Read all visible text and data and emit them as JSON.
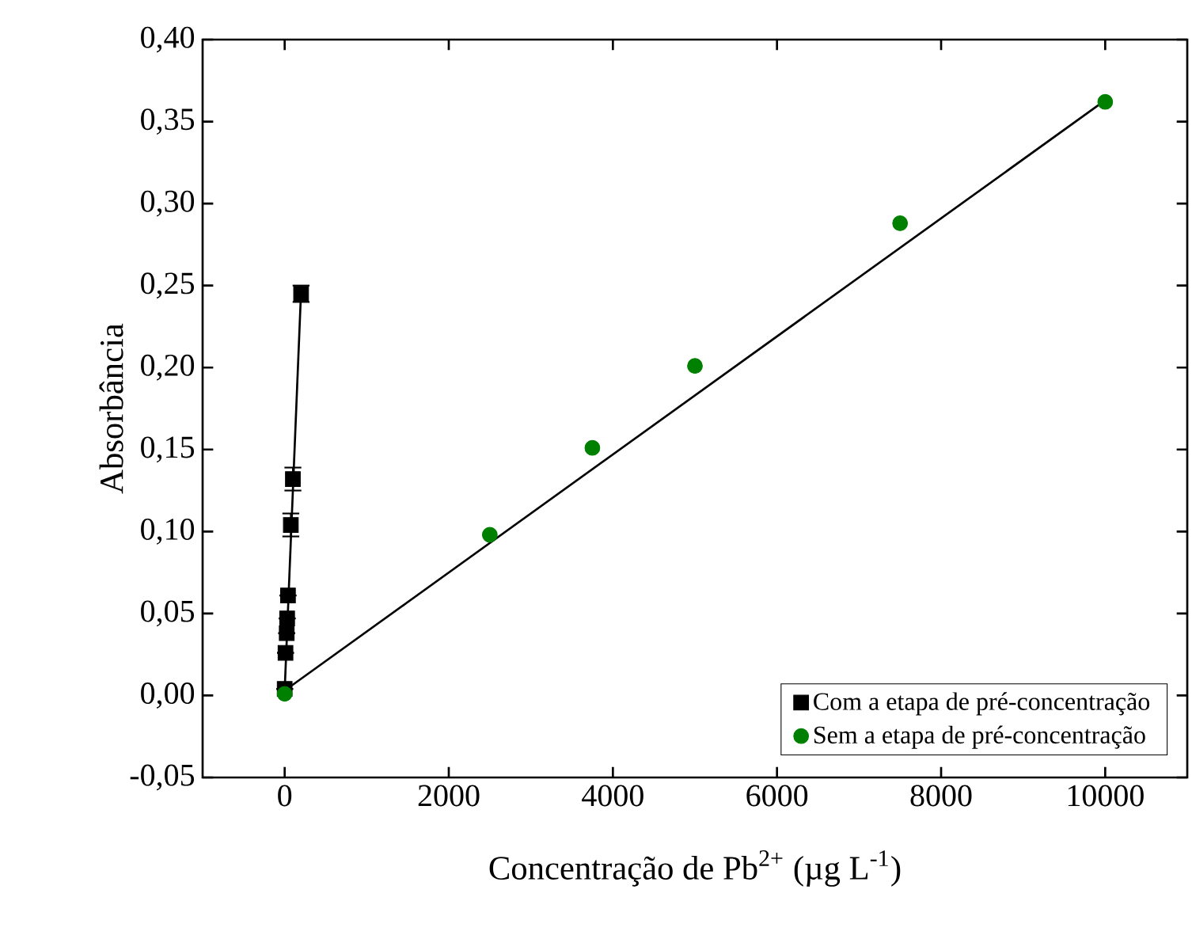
{
  "chart_data": {
    "type": "scatter",
    "xlabel": "Concentração de Pb$^{2+}$ (µg L$^{-1}$)",
    "ylabel": "Absorbância",
    "xlim": [
      -1000,
      11000
    ],
    "xticks": [
      0,
      2000,
      4000,
      6000,
      8000,
      10000
    ],
    "ylim": [
      -0.05,
      0.4
    ],
    "yticks": [
      {
        "value": -0.05,
        "label": "-0,05"
      },
      {
        "value": 0,
        "label": "0,00"
      },
      {
        "value": 0.05,
        "label": "0,05"
      },
      {
        "value": 0.1,
        "label": "0,10"
      },
      {
        "value": 0.15,
        "label": "0,15"
      },
      {
        "value": 0.2,
        "label": "0,20"
      },
      {
        "value": 0.25,
        "label": "0,25"
      },
      {
        "value": 0.3,
        "label": "0,30"
      },
      {
        "value": 0.35,
        "label": "0,35"
      },
      {
        "value": 0.4,
        "label": "0,40"
      }
    ],
    "legend": "bottom right",
    "grid": false,
    "series": [
      {
        "name": "Com a etapa de pré-concentração",
        "color": "#000000",
        "marker": "square",
        "x": [
          0,
          10,
          25,
          30,
          40,
          75,
          100,
          200
        ],
        "values": [
          0.004,
          0.026,
          0.038,
          0.047,
          0.061,
          0.104,
          0.132,
          0.245
        ],
        "errors": [
          null,
          null,
          null,
          null,
          null,
          0.007,
          0.007,
          0.005
        ]
      },
      {
        "name": "Sem a etapa de pré-concentração",
        "color": "#008000",
        "marker": "circle",
        "x": [
          0,
          2500,
          3750,
          5000,
          7500,
          10000
        ],
        "values": [
          0.001,
          0.098,
          0.151,
          0.201,
          0.288,
          0.362
        ]
      },
      {
        "type": "line",
        "color": "#000000",
        "x": [
          0,
          200
        ],
        "values": [
          0.003,
          0.247
        ]
      },
      {
        "type": "line",
        "color": "#000000",
        "x": [
          0,
          10000
        ],
        "values": [
          0.003,
          0.363
        ]
      }
    ]
  }
}
